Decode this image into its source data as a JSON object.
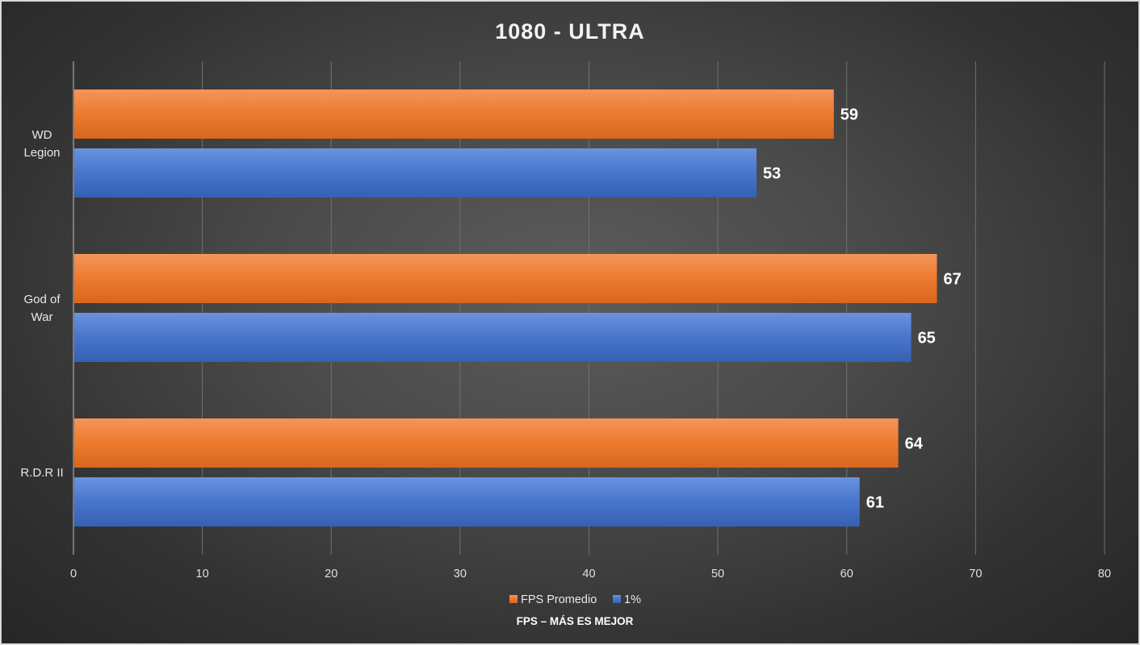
{
  "chart_data": {
    "type": "bar",
    "orientation": "horizontal",
    "title": "1080 - ULTRA",
    "categories": [
      [
        "WD",
        "Legion"
      ],
      [
        "God of",
        "War"
      ],
      [
        "R.D.R II"
      ]
    ],
    "series": [
      {
        "name": "FPS Promedio",
        "values": [
          59,
          67,
          64
        ],
        "color": "#ed7d31"
      },
      {
        "name": "1%",
        "values": [
          53,
          65,
          61
        ],
        "color": "#4472c4"
      }
    ],
    "xlim": [
      0,
      80
    ],
    "ticks": [
      0,
      10,
      20,
      30,
      40,
      50,
      60,
      70,
      80
    ],
    "xlabel": "FPS – MÁS ES MEJOR",
    "ylabel": "",
    "grid": true,
    "legend_position": "bottom-center",
    "data_labels": true
  }
}
